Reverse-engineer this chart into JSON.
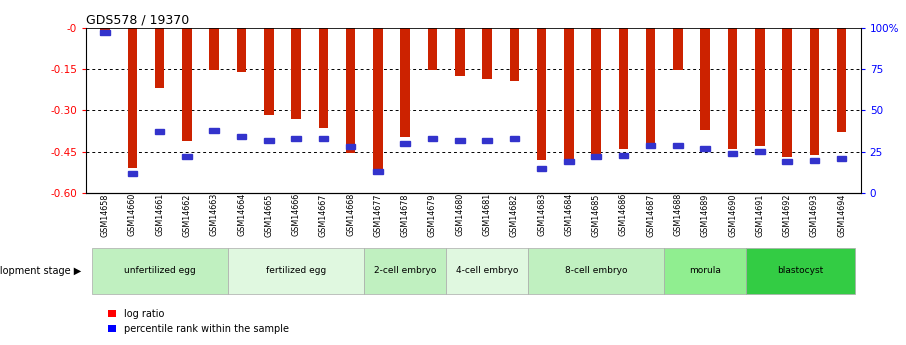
{
  "title": "GDS578 / 19370",
  "samples": [
    "GSM14658",
    "GSM14660",
    "GSM14661",
    "GSM14662",
    "GSM14663",
    "GSM14664",
    "GSM14665",
    "GSM14666",
    "GSM14667",
    "GSM14668",
    "GSM14677",
    "GSM14678",
    "GSM14679",
    "GSM14680",
    "GSM14681",
    "GSM14682",
    "GSM14683",
    "GSM14684",
    "GSM14685",
    "GSM14686",
    "GSM14687",
    "GSM14688",
    "GSM14689",
    "GSM14690",
    "GSM14691",
    "GSM14692",
    "GSM14693",
    "GSM14694"
  ],
  "log_ratio": [
    -0.03,
    -0.51,
    -0.22,
    -0.41,
    -0.155,
    -0.16,
    -0.315,
    -0.33,
    -0.365,
    -0.455,
    -0.535,
    -0.395,
    -0.155,
    -0.175,
    -0.185,
    -0.195,
    -0.48,
    -0.49,
    -0.47,
    -0.44,
    -0.44,
    -0.155,
    -0.37,
    -0.44,
    -0.43,
    -0.47,
    -0.46,
    -0.38
  ],
  "percentile": [
    97,
    12,
    37,
    22,
    38,
    34,
    32,
    33,
    33,
    28,
    13,
    30,
    33,
    32,
    32,
    33,
    15,
    19,
    22,
    23,
    29,
    29,
    27,
    24,
    25,
    19,
    20,
    21
  ],
  "stages": [
    {
      "label": "unfertilized egg",
      "start": 0,
      "end": 5,
      "color": "#c0f0c0"
    },
    {
      "label": "fertilized egg",
      "start": 5,
      "end": 10,
      "color": "#e0f8e0"
    },
    {
      "label": "2-cell embryo",
      "start": 10,
      "end": 13,
      "color": "#c0f0c0"
    },
    {
      "label": "4-cell embryo",
      "start": 13,
      "end": 16,
      "color": "#e0f8e0"
    },
    {
      "label": "8-cell embryo",
      "start": 16,
      "end": 21,
      "color": "#c0f0c0"
    },
    {
      "label": "morula",
      "start": 21,
      "end": 24,
      "color": "#90ee90"
    },
    {
      "label": "blastocyst",
      "start": 24,
      "end": 28,
      "color": "#33cc44"
    }
  ],
  "bar_color": "#cc2200",
  "marker_color": "#3333cc",
  "ylim_left": [
    -0.6,
    0.0
  ],
  "ylim_right": [
    0,
    100
  ],
  "yticks_left": [
    0.0,
    -0.15,
    -0.3,
    -0.45,
    -0.6
  ],
  "yticks_right": [
    0,
    25,
    50,
    75,
    100
  ],
  "bar_width": 0.35
}
